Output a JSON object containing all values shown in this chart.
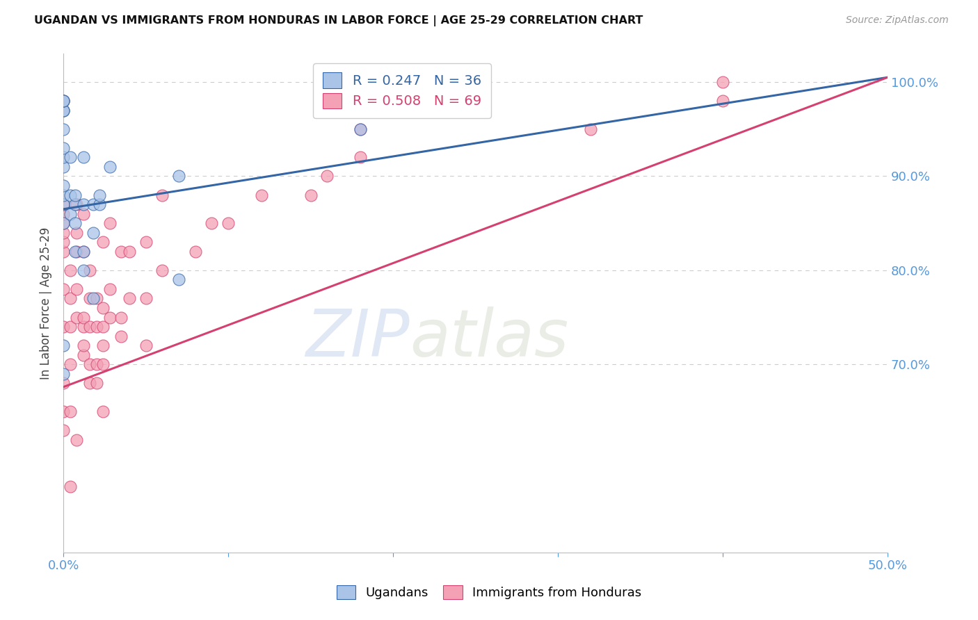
{
  "title": "UGANDAN VS IMMIGRANTS FROM HONDURAS IN LABOR FORCE | AGE 25-29 CORRELATION CHART",
  "source_text": "Source: ZipAtlas.com",
  "ylabel": "In Labor Force | Age 25-29",
  "x_min": 0.0,
  "x_max": 0.5,
  "y_min": 0.5,
  "y_max": 1.03,
  "blue_scatter_color": "#aac4e8",
  "blue_line_color": "#3465a4",
  "pink_scatter_color": "#f4a0b5",
  "pink_line_color": "#d44070",
  "watermark_zip": "ZIP",
  "watermark_atlas": "atlas",
  "background_color": "#ffffff",
  "grid_color": "#cccccc",
  "tick_color": "#5599dd",
  "ugandan_x": [
    0.0,
    0.0,
    0.0,
    0.0,
    0.0,
    0.0,
    0.0,
    0.0,
    0.0,
    0.0,
    0.0,
    0.0,
    0.0,
    0.0,
    0.0,
    0.0,
    0.004,
    0.004,
    0.004,
    0.007,
    0.007,
    0.007,
    0.007,
    0.012,
    0.012,
    0.012,
    0.012,
    0.018,
    0.018,
    0.018,
    0.022,
    0.022,
    0.028,
    0.07,
    0.07,
    0.18
  ],
  "ugandan_y": [
    0.69,
    0.72,
    0.85,
    0.87,
    0.88,
    0.89,
    0.91,
    0.92,
    0.93,
    0.95,
    0.97,
    0.97,
    0.97,
    0.98,
    0.98,
    0.98,
    0.86,
    0.88,
    0.92,
    0.82,
    0.85,
    0.87,
    0.88,
    0.8,
    0.82,
    0.87,
    0.92,
    0.77,
    0.84,
    0.87,
    0.87,
    0.88,
    0.91,
    0.79,
    0.9,
    0.95
  ],
  "honduras_x": [
    0.0,
    0.0,
    0.0,
    0.0,
    0.0,
    0.0,
    0.0,
    0.0,
    0.0,
    0.0,
    0.0,
    0.0,
    0.004,
    0.004,
    0.004,
    0.004,
    0.004,
    0.004,
    0.008,
    0.008,
    0.008,
    0.008,
    0.008,
    0.008,
    0.012,
    0.012,
    0.012,
    0.012,
    0.012,
    0.012,
    0.016,
    0.016,
    0.016,
    0.016,
    0.016,
    0.02,
    0.02,
    0.02,
    0.02,
    0.024,
    0.024,
    0.024,
    0.024,
    0.024,
    0.024,
    0.028,
    0.028,
    0.028,
    0.035,
    0.035,
    0.035,
    0.04,
    0.04,
    0.05,
    0.05,
    0.05,
    0.06,
    0.06,
    0.08,
    0.09,
    0.1,
    0.12,
    0.15,
    0.16,
    0.18,
    0.18,
    0.32,
    0.4,
    0.4
  ],
  "honduras_y": [
    0.63,
    0.65,
    0.68,
    0.74,
    0.78,
    0.82,
    0.83,
    0.84,
    0.85,
    0.86,
    0.87,
    0.98,
    0.57,
    0.65,
    0.7,
    0.74,
    0.77,
    0.8,
    0.62,
    0.75,
    0.78,
    0.82,
    0.84,
    0.87,
    0.71,
    0.72,
    0.74,
    0.75,
    0.82,
    0.86,
    0.68,
    0.7,
    0.74,
    0.77,
    0.8,
    0.68,
    0.7,
    0.74,
    0.77,
    0.65,
    0.7,
    0.72,
    0.74,
    0.76,
    0.83,
    0.75,
    0.78,
    0.85,
    0.73,
    0.75,
    0.82,
    0.77,
    0.82,
    0.72,
    0.77,
    0.83,
    0.8,
    0.88,
    0.82,
    0.85,
    0.85,
    0.88,
    0.88,
    0.9,
    0.92,
    0.95,
    0.95,
    0.98,
    1.0
  ],
  "blue_line_x0": 0.0,
  "blue_line_y0": 0.865,
  "blue_line_x1": 0.5,
  "blue_line_y1": 1.005,
  "pink_line_x0": 0.0,
  "pink_line_y0": 0.676,
  "pink_line_x1": 0.5,
  "pink_line_y1": 1.005
}
